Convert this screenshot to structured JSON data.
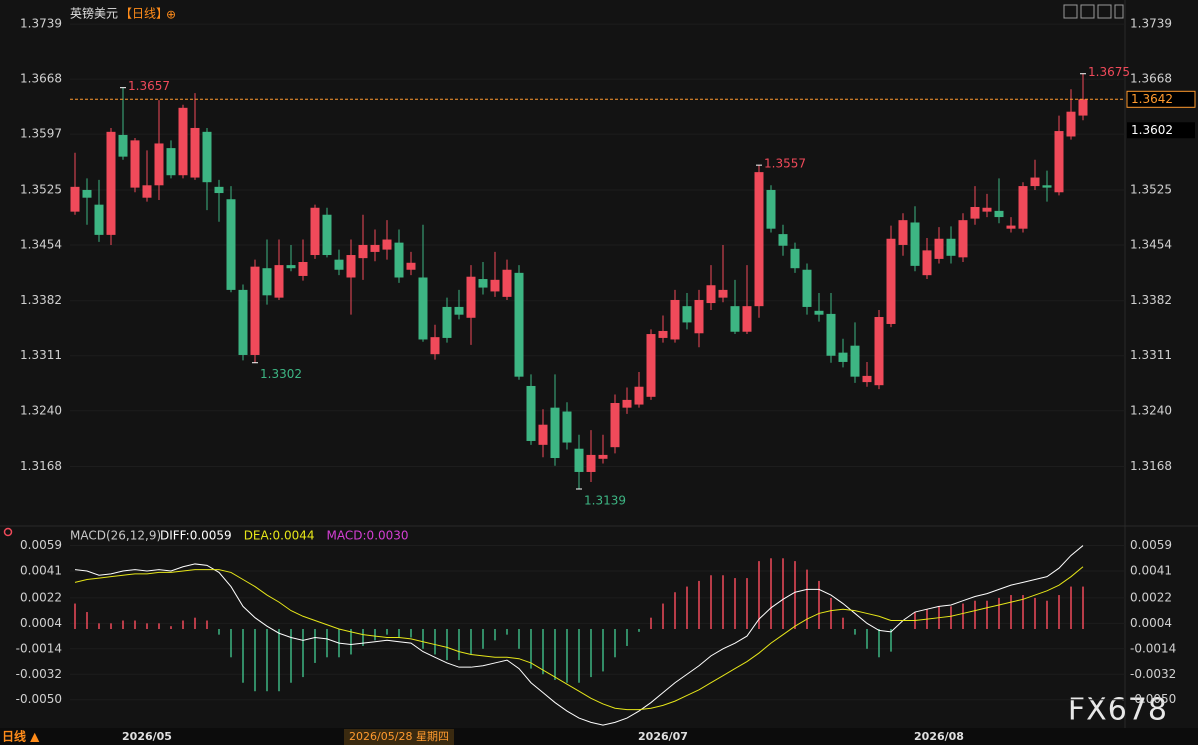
{
  "chart_data": [
    {
      "type": "candlestick",
      "title": "英镑美元",
      "period": "【日线】",
      "icon": "⊕",
      "open": [
        1.3497,
        1.3525,
        1.3506,
        1.3467,
        1.3596,
        1.3528,
        1.3515,
        1.3531,
        1.3579,
        1.3544,
        1.3541,
        1.36,
        1.3529,
        1.3513,
        1.3396,
        1.3312,
        1.3424,
        1.3386,
        1.3428,
        1.3414,
        1.3441,
        1.3493,
        1.3435,
        1.3412,
        1.3437,
        1.3445,
        1.3448,
        1.3457,
        1.3422,
        1.3412,
        1.3313,
        1.3374,
        1.3374,
        1.336,
        1.341,
        1.3394,
        1.3387,
        1.3418,
        1.3272,
        1.3196,
        1.3244,
        1.3239,
        1.3191,
        1.3161,
        1.3178,
        1.3193,
        1.3244,
        1.3248,
        1.3258,
        1.3334,
        1.3332,
        1.3375,
        1.334,
        1.3379,
        1.3386,
        1.3375,
        1.3342,
        1.3375,
        1.3525,
        1.3468,
        1.3449,
        1.3422,
        1.3369,
        1.3365,
        1.3315,
        1.3324,
        1.3277,
        1.3273,
        1.3352,
        1.3454,
        1.3483,
        1.3415,
        1.3436,
        1.3462,
        1.3438,
        1.3488,
        1.3497,
        1.3498,
        1.3475,
        1.3475,
        1.353,
        1.3531,
        1.3522,
        1.3594,
        1.3621
      ],
      "high": [
        1.3573,
        1.354,
        1.3538,
        1.3605,
        1.3657,
        1.3592,
        1.3576,
        1.3641,
        1.3589,
        1.3635,
        1.365,
        1.3605,
        1.3538,
        1.353,
        1.3403,
        1.3435,
        1.3461,
        1.3461,
        1.3454,
        1.3461,
        1.3506,
        1.3502,
        1.3448,
        1.3461,
        1.3493,
        1.3474,
        1.3486,
        1.3474,
        1.3445,
        1.348,
        1.3351,
        1.3386,
        1.3396,
        1.3428,
        1.3432,
        1.3445,
        1.3435,
        1.3428,
        1.3287,
        1.3242,
        1.3287,
        1.3251,
        1.3209,
        1.3215,
        1.3209,
        1.3261,
        1.327,
        1.329,
        1.3345,
        1.3363,
        1.3396,
        1.3392,
        1.3396,
        1.3428,
        1.3454,
        1.3409,
        1.3428,
        1.3557,
        1.3531,
        1.348,
        1.3457,
        1.343,
        1.3392,
        1.3392,
        1.3333,
        1.3354,
        1.3303,
        1.337,
        1.3479,
        1.3495,
        1.3504,
        1.3463,
        1.3477,
        1.3478,
        1.3495,
        1.353,
        1.352,
        1.354,
        1.349,
        1.3535,
        1.3564,
        1.355,
        1.3621,
        1.3655,
        1.3675
      ],
      "low": [
        1.3493,
        1.348,
        1.3458,
        1.3454,
        1.3564,
        1.3522,
        1.351,
        1.3512,
        1.354,
        1.354,
        1.3538,
        1.3499,
        1.3484,
        1.3393,
        1.3305,
        1.3302,
        1.3377,
        1.3383,
        1.342,
        1.3408,
        1.3436,
        1.3438,
        1.3415,
        1.3364,
        1.3409,
        1.3433,
        1.3435,
        1.3405,
        1.3415,
        1.3329,
        1.3306,
        1.3328,
        1.3358,
        1.3325,
        1.339,
        1.3387,
        1.3383,
        1.328,
        1.3196,
        1.318,
        1.3169,
        1.319,
        1.3139,
        1.3148,
        1.3172,
        1.3185,
        1.3236,
        1.3244,
        1.3254,
        1.3328,
        1.3328,
        1.3345,
        1.3322,
        1.337,
        1.338,
        1.3339,
        1.3339,
        1.336,
        1.347,
        1.344,
        1.3418,
        1.3364,
        1.3355,
        1.3302,
        1.3296,
        1.3276,
        1.3271,
        1.3268,
        1.3348,
        1.344,
        1.342,
        1.341,
        1.343,
        1.343,
        1.3432,
        1.348,
        1.349,
        1.3482,
        1.347,
        1.347,
        1.3525,
        1.351,
        1.3518,
        1.359,
        1.3615
      ],
      "close": [
        1.3529,
        1.3515,
        1.3467,
        1.36,
        1.3568,
        1.3589,
        1.3531,
        1.3585,
        1.3544,
        1.3631,
        1.3605,
        1.3535,
        1.3521,
        1.3396,
        1.3312,
        1.3426,
        1.3389,
        1.3428,
        1.3424,
        1.3432,
        1.3502,
        1.3441,
        1.3422,
        1.3441,
        1.3454,
        1.3454,
        1.3461,
        1.3412,
        1.3431,
        1.3332,
        1.3335,
        1.3334,
        1.3364,
        1.3413,
        1.3399,
        1.3409,
        1.3422,
        1.3284,
        1.3201,
        1.3222,
        1.3179,
        1.3199,
        1.3161,
        1.3183,
        1.3183,
        1.325,
        1.3254,
        1.3271,
        1.3339,
        1.3343,
        1.3383,
        1.3354,
        1.3383,
        1.3402,
        1.3396,
        1.3342,
        1.3375,
        1.3548,
        1.3475,
        1.3453,
        1.3424,
        1.3374,
        1.3364,
        1.3311,
        1.3303,
        1.3284,
        1.3285,
        1.3361,
        1.3462,
        1.3486,
        1.3427,
        1.3447,
        1.3462,
        1.344,
        1.3486,
        1.3503,
        1.3502,
        1.349,
        1.3479,
        1.353,
        1.3541,
        1.3528,
        1.3601,
        1.3626,
        1.3642
      ],
      "up_color": "#f04a5a",
      "down_color": "#3db583",
      "ylim": [
        1.3099,
        1.3765
      ],
      "yticks": [
        1.3739,
        1.3668,
        1.3597,
        1.3525,
        1.3454,
        1.3382,
        1.3311,
        {
          "value": 1.324,
          "label": "1.3240"
        },
        1.3168
      ],
      "annotations": [
        {
          "at": 4,
          "value": 1.3657
        },
        {
          "at": 15,
          "value": 1.3302
        },
        {
          "at": 42,
          "value": 1.3139
        },
        {
          "at": 57,
          "value": 1.3557
        },
        {
          "at": 84,
          "value": 1.3675
        }
      ],
      "price_boxes": [
        {
          "value": 1.3642,
          "color": "#ff9a2e",
          "dashed": true
        },
        {
          "value": 1.3602,
          "color": "#ffffff",
          "dashed": false
        }
      ],
      "x_labels": [
        {
          "at": 6,
          "label": "2026/05"
        },
        {
          "at": 49,
          "label": "2026/07"
        },
        {
          "at": 72,
          "label": "2026/08"
        }
      ],
      "crosshair": {
        "at": 27,
        "label": "2026/05/28 星期四"
      }
    },
    {
      "type": "macd",
      "title": "MACD(26,12,9)",
      "ylim": [
        -0.007,
        0.007
      ],
      "yticks": [
        0.0059,
        0.0041,
        0.0022,
        0.0004,
        -0.0014,
        -0.0032,
        {
          "value": -0.005,
          "label": "-0.0050"
        }
      ],
      "up_color": "#f04a5a",
      "down_color": "#3db583",
      "series": [
        {
          "name": "DIFF:0.0059",
          "color": "#ffffff",
          "values": [
            0.0042,
            0.0041,
            0.0038,
            0.0039,
            0.0041,
            0.0042,
            0.0041,
            0.0042,
            0.0041,
            0.0044,
            0.0046,
            0.0045,
            0.004,
            0.003,
            0.0016,
            0.0008,
            0.0002,
            -0.0003,
            -0.0006,
            -0.0008,
            -0.0006,
            -0.0007,
            -0.001,
            -0.0011,
            -0.001,
            -0.0009,
            -0.0008,
            -0.0009,
            -0.001,
            -0.0016,
            -0.002,
            -0.0024,
            -0.0027,
            -0.0027,
            -0.0026,
            -0.0024,
            -0.0022,
            -0.0028,
            -0.0038,
            -0.0045,
            -0.0052,
            -0.0058,
            -0.0063,
            -0.0066,
            -0.0068,
            -0.0066,
            -0.0063,
            -0.0058,
            -0.0052,
            -0.0045,
            -0.0038,
            -0.0032,
            -0.0026,
            -0.0019,
            -0.0014,
            -0.001,
            -0.0005,
            0.0007,
            0.0015,
            0.0021,
            0.0026,
            0.0028,
            0.0028,
            0.0024,
            0.0018,
            0.0011,
            0.0004,
            -0.0001,
            -0.0002,
            0.0006,
            0.0012,
            0.0014,
            0.0016,
            0.0017,
            0.002,
            0.0023,
            0.0025,
            0.0028,
            0.0031,
            0.0033,
            0.0035,
            0.0037,
            0.0043,
            0.0052,
            0.0059
          ]
        },
        {
          "name": "DEA:0.0044",
          "color": "#e6e619",
          "values": [
            0.0033,
            0.0035,
            0.0036,
            0.0037,
            0.0038,
            0.0039,
            0.0039,
            0.004,
            0.004,
            0.0041,
            0.0042,
            0.0042,
            0.0042,
            0.004,
            0.0035,
            0.003,
            0.0024,
            0.0019,
            0.0013,
            0.0009,
            0.0006,
            0.0003,
            0.0,
            -0.0002,
            -0.0004,
            -0.0005,
            -0.0006,
            -0.0006,
            -0.0007,
            -0.0009,
            -0.0011,
            -0.0013,
            -0.0016,
            -0.0018,
            -0.0019,
            -0.002,
            -0.002,
            -0.0021,
            -0.0024,
            -0.0029,
            -0.0034,
            -0.0039,
            -0.0044,
            -0.0049,
            -0.0053,
            -0.0056,
            -0.0057,
            -0.0057,
            -0.0056,
            -0.0054,
            -0.0051,
            -0.0047,
            -0.0043,
            -0.0038,
            -0.0033,
            -0.0028,
            -0.0023,
            -0.0017,
            -0.001,
            -0.0004,
            0.0002,
            0.0007,
            0.0011,
            0.0013,
            0.0014,
            0.0013,
            0.0011,
            0.0009,
            0.0006,
            0.0006,
            0.0006,
            0.0007,
            0.0008,
            0.0009,
            0.0011,
            0.0013,
            0.0015,
            0.0017,
            0.0019,
            0.0021,
            0.0024,
            0.0027,
            0.0031,
            0.0037,
            0.0044
          ]
        },
        {
          "name": "MACD:0.0030",
          "color": "#d43fd4",
          "values": [
            0.0018,
            0.0012,
            0.0004,
            0.0004,
            0.0006,
            0.0006,
            0.0004,
            0.0004,
            0.0002,
            0.0006,
            0.0008,
            0.0006,
            -0.0004,
            -0.002,
            -0.0038,
            -0.0044,
            -0.0044,
            -0.0044,
            -0.0038,
            -0.0034,
            -0.0024,
            -0.002,
            -0.002,
            -0.0018,
            -0.0012,
            -0.0008,
            -0.0004,
            -0.0006,
            -0.0006,
            -0.0014,
            -0.0018,
            -0.0022,
            -0.0022,
            -0.0018,
            -0.0014,
            -0.0008,
            -0.0004,
            -0.0014,
            -0.0028,
            -0.0032,
            -0.0036,
            -0.0038,
            -0.0038,
            -0.0034,
            -0.003,
            -0.002,
            -0.0012,
            -0.0002,
            0.0008,
            0.0018,
            0.0026,
            0.003,
            0.0034,
            0.0038,
            0.0038,
            0.0036,
            0.0036,
            0.0048,
            0.005,
            0.005,
            0.0048,
            0.0042,
            0.0034,
            0.0022,
            0.0008,
            -0.0004,
            -0.0014,
            -0.002,
            -0.0016,
            0.0,
            0.0012,
            0.0014,
            0.0016,
            0.0016,
            0.0018,
            0.002,
            0.002,
            0.0022,
            0.0024,
            0.0024,
            0.0022,
            0.002,
            0.0024,
            0.003,
            0.003
          ]
        }
      ]
    }
  ],
  "page": {
    "period_button": "日线 ▲",
    "watermark": "FX678"
  }
}
